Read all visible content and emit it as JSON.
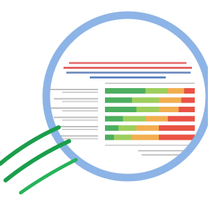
{
  "stacked_bars": {
    "colors": [
      "#2ea043",
      "#8cc63f",
      "#f0a030",
      "#e53525"
    ],
    "rows": [
      [
        45,
        25,
        18,
        12
      ],
      [
        30,
        30,
        25,
        15
      ],
      [
        35,
        25,
        22,
        18
      ],
      [
        20,
        25,
        25,
        30
      ],
      [
        15,
        20,
        25,
        40
      ],
      [
        10,
        20,
        30,
        40
      ]
    ]
  }
}
